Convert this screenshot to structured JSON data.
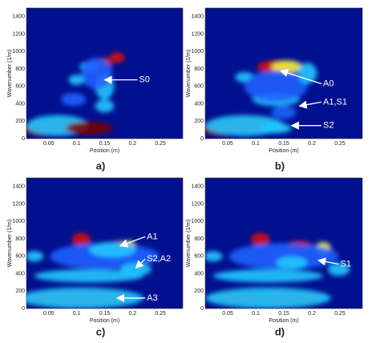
{
  "chart_data": [
    {
      "type": "heatmap",
      "panel_label": "a)",
      "x_label": "Position (m)",
      "y_label": "Wavenumber (1/m)",
      "xlim": [
        0.01,
        0.29
      ],
      "ylim": [
        0,
        1500
      ],
      "xticks": [
        0.05,
        0.1,
        0.15,
        0.2,
        0.25
      ],
      "yticks": [
        0,
        200,
        400,
        600,
        800,
        1000,
        1200,
        1400
      ],
      "annotations": [
        "S0"
      ]
    },
    {
      "type": "heatmap",
      "panel_label": "b)",
      "x_label": "Position (m)",
      "y_label": "Wavenumber (1/m)",
      "xlim": [
        0.01,
        0.29
      ],
      "ylim": [
        0,
        1500
      ],
      "xticks": [
        0.05,
        0.1,
        0.15,
        0.2,
        0.25
      ],
      "yticks": [
        0,
        200,
        400,
        600,
        800,
        1000,
        1200,
        1400
      ],
      "annotations": [
        "A0",
        "A1,S1",
        "S2"
      ]
    },
    {
      "type": "heatmap",
      "panel_label": "c)",
      "x_label": "Position (m)",
      "y_label": "Wavenumber (1/m)",
      "xlim": [
        0.01,
        0.29
      ],
      "ylim": [
        0,
        1500
      ],
      "xticks": [
        0.05,
        0.1,
        0.15,
        0.2,
        0.25
      ],
      "yticks": [
        0,
        200,
        400,
        600,
        800,
        1000,
        1200,
        1400
      ],
      "annotations": [
        "A1",
        "S2,A2",
        "A3"
      ]
    },
    {
      "type": "heatmap",
      "panel_label": "d)",
      "x_label": "Position (m)",
      "y_label": "Wavenumber (1/m)",
      "xlim": [
        0.01,
        0.29
      ],
      "ylim": [
        0,
        1500
      ],
      "xticks": [
        0.05,
        0.1,
        0.15,
        0.2,
        0.25
      ],
      "yticks": [
        0,
        200,
        400,
        600,
        800,
        1000,
        1200,
        1400
      ],
      "annotations": [
        "S1"
      ]
    }
  ]
}
